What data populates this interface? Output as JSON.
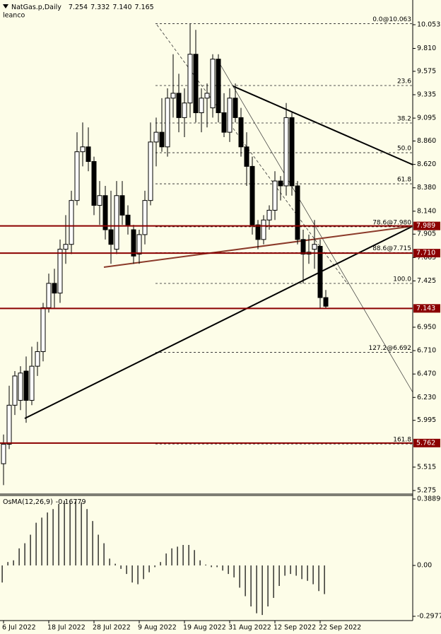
{
  "chart_data": [
    {
      "type": "candlestick",
      "title": "NatGas.p,Daily",
      "subtitle": "leanco",
      "ohlc_labels": [
        "7.254",
        "7.332",
        "7.140",
        "7.165"
      ],
      "categories": [
        "6 Jul 2022",
        null,
        null,
        null,
        null,
        null,
        null,
        null,
        "18 Jul 2022",
        null,
        null,
        null,
        null,
        null,
        null,
        null,
        "28 Jul 2022",
        null,
        null,
        null,
        null,
        null,
        null,
        null,
        "9 Aug 2022",
        null,
        null,
        null,
        null,
        null,
        null,
        null,
        "19 Aug 2022",
        null,
        null,
        null,
        null,
        null,
        null,
        null,
        "31 Aug 2022",
        null,
        null,
        null,
        null,
        null,
        null,
        null,
        "12 Sep 2022",
        null,
        null,
        null,
        null,
        null,
        null,
        null,
        "22 Sep 2022",
        null
      ],
      "open": [
        5.55,
        5.75,
        6.15,
        6.2,
        6.5,
        6.2,
        6.55,
        6.7,
        7.15,
        7.4,
        7.3,
        7.75,
        7.8,
        8.25,
        8.75,
        8.8,
        8.65,
        8.2,
        8.3,
        7.95,
        7.75,
        8.3,
        8.1,
        7.95,
        7.7,
        7.9,
        8.25,
        8.85,
        8.95,
        8.8,
        9.3,
        9.35,
        9.1,
        9.25,
        9.75,
        9.15,
        9.3,
        9.2,
        9.7,
        9.15,
        8.95,
        9.3,
        9.1,
        8.8,
        8.6,
        8.0,
        7.85,
        8.05,
        8.15,
        8.45,
        8.4,
        9.1,
        8.4,
        7.85,
        7.7,
        7.75,
        7.78,
        7.254
      ],
      "high": [
        5.85,
        6.35,
        6.5,
        6.55,
        6.65,
        6.75,
        6.8,
        7.2,
        7.5,
        7.55,
        7.85,
        8.1,
        8.35,
        8.95,
        9.05,
        9.0,
        8.7,
        8.45,
        8.4,
        8.35,
        8.45,
        8.45,
        8.2,
        8.0,
        7.95,
        8.35,
        9.05,
        9.1,
        9.3,
        9.4,
        9.75,
        9.55,
        9.4,
        10.06,
        10.0,
        9.4,
        9.45,
        9.75,
        9.75,
        9.35,
        9.4,
        9.45,
        9.2,
        8.95,
        8.7,
        8.05,
        8.1,
        8.2,
        8.55,
        8.5,
        9.25,
        9.15,
        8.45,
        7.95,
        7.9,
        8.05,
        7.85,
        7.332
      ],
      "low": [
        5.33,
        5.7,
        6.05,
        6.1,
        5.97,
        6.15,
        6.45,
        6.6,
        7.1,
        7.15,
        7.2,
        7.6,
        7.7,
        8.2,
        8.6,
        8.55,
        8.1,
        8.0,
        7.85,
        7.6,
        7.7,
        8.0,
        7.9,
        7.6,
        7.6,
        7.8,
        8.2,
        8.6,
        8.75,
        8.7,
        9.1,
        8.95,
        8.9,
        9.1,
        9.05,
        8.95,
        9.0,
        9.1,
        9.05,
        8.9,
        8.85,
        9.05,
        8.7,
        8.4,
        7.9,
        7.75,
        7.8,
        7.95,
        8.05,
        8.25,
        8.3,
        8.3,
        7.8,
        7.4,
        7.6,
        7.55,
        7.14,
        7.14
      ],
      "close": [
        5.75,
        6.15,
        6.45,
        6.48,
        6.2,
        6.55,
        6.7,
        7.15,
        7.4,
        7.3,
        7.75,
        7.8,
        8.25,
        8.75,
        8.8,
        8.65,
        8.2,
        8.3,
        7.95,
        7.8,
        8.3,
        8.1,
        8.0,
        7.68,
        7.9,
        8.25,
        8.85,
        8.95,
        8.8,
        9.3,
        9.35,
        9.1,
        9.25,
        9.75,
        9.15,
        9.3,
        9.35,
        9.7,
        9.15,
        8.95,
        9.3,
        9.1,
        8.8,
        8.6,
        8.0,
        7.85,
        8.05,
        8.15,
        8.45,
        8.4,
        9.1,
        8.4,
        7.85,
        7.7,
        7.72,
        7.8,
        7.254,
        7.165
      ],
      "up_color": "#ffffff",
      "down_color": "#000000",
      "ylim": [
        5.246,
        10.292
      ],
      "yticks": [
        10.053,
        {
          "value": 9.81,
          "label": "9.810"
        },
        9.575,
        9.335,
        9.095,
        {
          "value": 8.86,
          "label": "8.860"
        },
        {
          "value": 8.62,
          "label": "8.620"
        },
        {
          "value": 8.38,
          "label": "8.380"
        },
        {
          "value": 8.14,
          "label": "8.140"
        },
        7.905,
        7.665,
        7.425,
        {
          "value": 6.95,
          "label": "6.950"
        },
        {
          "value": 6.71,
          "label": "6.710"
        },
        {
          "value": 6.47,
          "label": "6.470"
        },
        {
          "value": 6.23,
          "label": "6.230"
        },
        5.995,
        5.515,
        5.275
      ],
      "levels": [
        7.989,
        {
          "value": 7.71,
          "label": "7.710"
        },
        7.143,
        5.762
      ],
      "level_color": "#8b0000",
      "fibonacci": [
        {
          "text": "0.0@10.063",
          "price": 10.063
        },
        {
          "text": "23.6",
          "price": 9.429
        },
        {
          "text": "38.2",
          "price": 9.045
        },
        {
          "text": "50.0",
          "price": 8.74
        },
        {
          "text": "61.8",
          "price": 8.421
        },
        {
          "text": "78.6@7.980",
          "price": 7.98
        },
        {
          "text": "88.6@7.715",
          "price": 7.715
        },
        {
          "text": "100.0",
          "price": 7.399
        },
        {
          "text": "127.2@6.692",
          "price": 6.692
        },
        {
          "text": "161.8",
          "price": 5.753
        }
      ]
    },
    {
      "type": "bar",
      "title": "OsMA(12,26,9)",
      "values": [
        -0.1,
        0.02,
        0.03,
        0.1,
        0.13,
        0.18,
        0.25,
        0.28,
        0.31,
        0.33,
        0.36,
        0.38,
        0.37,
        0.38,
        0.37,
        0.33,
        0.26,
        0.18,
        0.13,
        0.04,
        0.01,
        -0.02,
        -0.05,
        -0.1,
        -0.11,
        -0.08,
        -0.04,
        -0.01,
        0.02,
        0.07,
        0.1,
        0.11,
        0.12,
        0.12,
        0.09,
        0.03,
        0.005,
        -0.01,
        -0.01,
        -0.03,
        -0.05,
        -0.07,
        -0.13,
        -0.18,
        -0.24,
        -0.28,
        -0.29,
        -0.24,
        -0.19,
        -0.12,
        -0.06,
        -0.05,
        -0.06,
        -0.08,
        -0.09,
        -0.11,
        -0.15,
        -0.16779
      ],
      "color": "#000000",
      "ylim": [
        -0.3227,
        0.4055
      ],
      "yticks": [
        0.38899,
        {
          "value": 0,
          "label": "0.00"
        },
        -0.29773
      ]
    }
  ]
}
